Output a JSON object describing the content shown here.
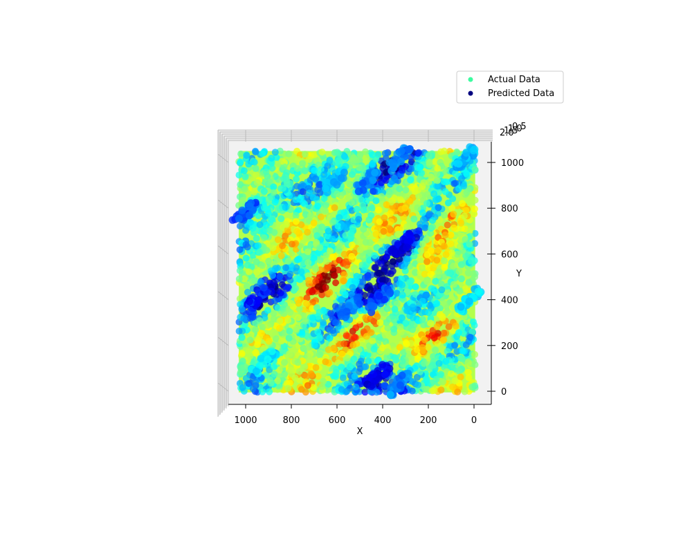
{
  "chart_data": {
    "type": "scatter",
    "projection": "3d",
    "view": "top-down",
    "xlabel": "X",
    "ylabel": "Y",
    "zlabel": "",
    "xlim": [
      1100,
      -70
    ],
    "ylim": [
      -50,
      1060
    ],
    "x_ticks": [
      1000,
      800,
      600,
      400,
      200,
      0
    ],
    "y_ticks": [
      0,
      200,
      400,
      600,
      800,
      1000
    ],
    "z_ticks_visible": [
      "2.0",
      "1.5",
      "1.0",
      "0.5"
    ],
    "grid": true,
    "legend": {
      "placement": "upper-right",
      "entries": [
        {
          "label": "Actual Data",
          "color": "#3dfca0"
        },
        {
          "label": "Predicted Data",
          "color": "#00007f"
        }
      ]
    },
    "colormap": "jet",
    "series": [
      {
        "name": "Actual Data",
        "color": "#3dfca0",
        "x_range": [
          0,
          1030
        ],
        "y_range": [
          0,
          1050
        ]
      },
      {
        "name": "Predicted Data",
        "color": "#00007f",
        "x_range": [
          0,
          1030
        ],
        "y_range": [
          0,
          1050
        ]
      }
    ],
    "dark_clusters": [
      {
        "x": 310,
        "y": 640,
        "level": 0.05
      },
      {
        "x": 420,
        "y": 70,
        "level": 0.05
      },
      {
        "x": 940,
        "y": 410,
        "level": 0.1
      },
      {
        "x": 1000,
        "y": 780,
        "level": 0.15
      },
      {
        "x": 420,
        "y": 400,
        "level": 0.15
      },
      {
        "x": 540,
        "y": 370,
        "level": 0.2
      },
      {
        "x": 470,
        "y": 920,
        "level": 0.2
      },
      {
        "x": 610,
        "y": 920,
        "level": 0.25
      },
      {
        "x": 330,
        "y": 1020,
        "level": 0.2
      },
      {
        "x": 40,
        "y": 1020,
        "level": 0.25
      },
      {
        "x": 20,
        "y": 400,
        "level": 0.3
      },
      {
        "x": 920,
        "y": 130,
        "level": 0.3
      },
      {
        "x": 330,
        "y": 30,
        "level": 0.2
      }
    ],
    "hot_clusters": [
      {
        "x": 640,
        "y": 490,
        "level": 0.85
      },
      {
        "x": 520,
        "y": 260,
        "level": 0.9
      },
      {
        "x": 140,
        "y": 270,
        "level": 0.85
      },
      {
        "x": 110,
        "y": 760,
        "level": 0.8
      },
      {
        "x": 330,
        "y": 700,
        "level": 0.7
      },
      {
        "x": 780,
        "y": 180,
        "level": 0.7
      },
      {
        "x": 580,
        "y": 820,
        "level": 0.75
      },
      {
        "x": 380,
        "y": 170,
        "level": 0.75
      }
    ]
  }
}
